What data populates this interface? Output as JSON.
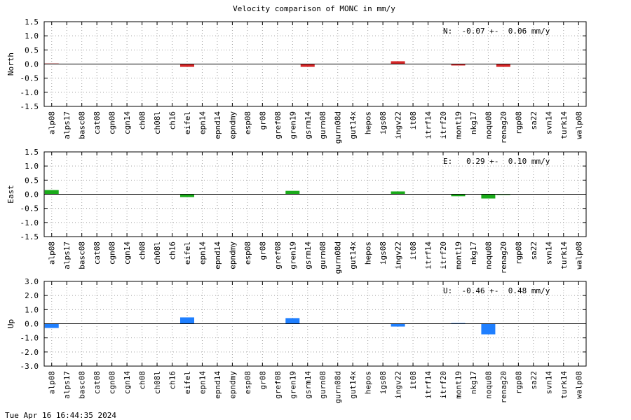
{
  "title": "Velocity comparison of MONC in mm/y",
  "timestamp": "Tue Apr 16 16:44:35 2024",
  "chart_data": {
    "type": "bar",
    "categories": [
      "alp08",
      "alps17",
      "basc08",
      "cat08",
      "cgn08",
      "cgn14",
      "ch08",
      "ch08l",
      "ch16",
      "eifel",
      "epn14",
      "epnd14",
      "epndmy",
      "esp08",
      "gr08",
      "gref08",
      "gren19",
      "gsrm14",
      "gurn08",
      "gurn08d",
      "gut14x",
      "hepos",
      "igs08",
      "ingv22",
      "it08",
      "itrf14",
      "itrf20",
      "mont19",
      "nkg17",
      "noqu08",
      "renag20",
      "rgp08",
      "sa22",
      "svn14",
      "turk14",
      "walp08"
    ],
    "panels": [
      {
        "ylabel": "North",
        "color": "#d62728",
        "ylim": [
          -1.5,
          1.5
        ],
        "yticks": [
          "1.5",
          "1.0",
          "0.5",
          "0.0",
          "-0.5",
          "-1.0",
          "-1.5"
        ],
        "stat": "N:  -0.07 +-  0.06 mm/y",
        "values": [
          0.02,
          0,
          0,
          0,
          0,
          0,
          0,
          0,
          0,
          -0.1,
          0,
          0,
          0,
          0,
          0,
          0,
          0,
          -0.1,
          0,
          0,
          0,
          0,
          0,
          0.1,
          0,
          0,
          0,
          -0.05,
          0,
          0,
          -0.1,
          0,
          0,
          0,
          0,
          0
        ]
      },
      {
        "ylabel": "East",
        "color": "#1aab1a",
        "ylim": [
          -1.5,
          1.5
        ],
        "yticks": [
          "1.5",
          "1.0",
          "0.5",
          "0.0",
          "-0.5",
          "-1.0",
          "-1.5"
        ],
        "stat": "E:   0.29 +-  0.10 mm/y",
        "values": [
          0.15,
          0,
          0,
          0,
          0,
          0,
          0,
          0,
          0,
          -0.1,
          0,
          0,
          0,
          0,
          0,
          0,
          0.12,
          0,
          0,
          0,
          0,
          0,
          0,
          0.1,
          0,
          0,
          0,
          -0.07,
          0,
          -0.15,
          -0.02,
          0,
          0,
          0,
          0,
          0
        ]
      },
      {
        "ylabel": "Up",
        "color": "#1f7fff",
        "ylim": [
          -3.0,
          3.0
        ],
        "yticks": [
          "3.0",
          "2.0",
          "1.0",
          "0.0",
          "-1.0",
          "-2.0",
          "-3.0"
        ],
        "stat": "U:  -0.46 +-  0.48 mm/y",
        "values": [
          -0.3,
          0,
          0,
          0,
          0,
          0,
          0,
          0,
          0,
          0.45,
          0,
          0,
          0,
          0,
          0,
          0,
          0.4,
          0,
          0,
          0,
          0,
          0,
          0,
          -0.2,
          0,
          0,
          0,
          0.05,
          0,
          -0.75,
          0,
          0,
          0,
          0,
          0,
          0
        ]
      }
    ],
    "grid": true
  }
}
